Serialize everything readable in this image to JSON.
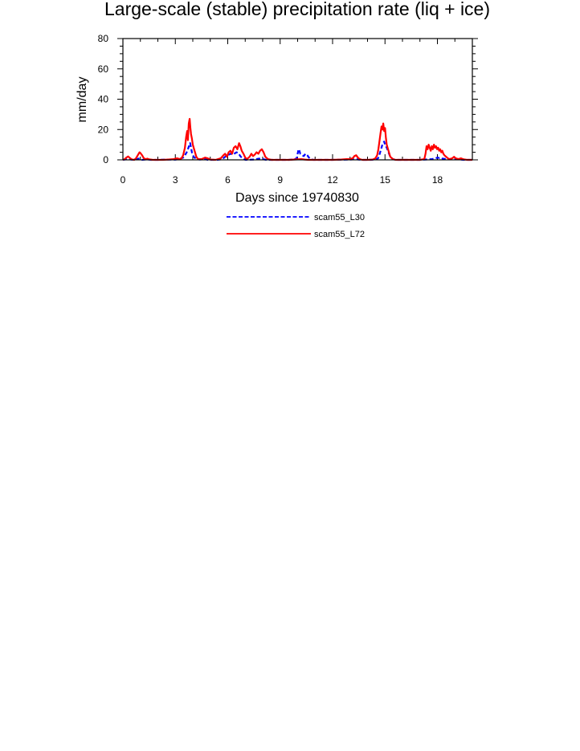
{
  "chart_data": {
    "type": "line",
    "title": "Large-scale (stable) precipitation rate (liq + ice)",
    "xlabel": "Days since 19740830",
    "ylabel": "mm/day",
    "xlim": [
      0,
      20
    ],
    "ylim": [
      0,
      80
    ],
    "xticks": [
      "0",
      "3",
      "6",
      "9",
      "12",
      "15",
      "18"
    ],
    "yticks": [
      "0",
      "20",
      "40",
      "60",
      "80"
    ],
    "grid": false,
    "legend_position": "below",
    "series": [
      {
        "name": "scam55_L30",
        "color": "#0000ff",
        "dash": "dashed",
        "points": [
          [
            0.0,
            0
          ],
          [
            0.15,
            0.3
          ],
          [
            0.3,
            0.6
          ],
          [
            0.45,
            0.2
          ],
          [
            0.6,
            0
          ],
          [
            0.9,
            0.8
          ],
          [
            1.1,
            0
          ],
          [
            1.4,
            0.3
          ],
          [
            1.6,
            0
          ],
          [
            2.0,
            0
          ],
          [
            2.5,
            0.2
          ],
          [
            3.0,
            0.1
          ],
          [
            3.3,
            0.8
          ],
          [
            3.45,
            1.5
          ],
          [
            3.55,
            3
          ],
          [
            3.65,
            5
          ],
          [
            3.72,
            7
          ],
          [
            3.78,
            9
          ],
          [
            3.85,
            11
          ],
          [
            3.9,
            8
          ],
          [
            3.95,
            5
          ],
          [
            4.05,
            2
          ],
          [
            4.2,
            0.5
          ],
          [
            4.4,
            0.2
          ],
          [
            4.7,
            0.5
          ],
          [
            4.85,
            0
          ],
          [
            5.4,
            0
          ],
          [
            5.7,
            0.5
          ],
          [
            5.85,
            2
          ],
          [
            6.0,
            3
          ],
          [
            6.15,
            4
          ],
          [
            6.3,
            3.5
          ],
          [
            6.5,
            5
          ],
          [
            6.6,
            4.5
          ],
          [
            6.75,
            2
          ],
          [
            6.9,
            0.8
          ],
          [
            7.0,
            0
          ],
          [
            7.5,
            0.2
          ],
          [
            7.8,
            0.8
          ],
          [
            8.0,
            0.5
          ],
          [
            8.2,
            0
          ],
          [
            9.0,
            0
          ],
          [
            9.5,
            0
          ],
          [
            9.8,
            0.3
          ],
          [
            9.95,
            1
          ],
          [
            10.0,
            4
          ],
          [
            10.05,
            7
          ],
          [
            10.1,
            6
          ],
          [
            10.15,
            4
          ],
          [
            10.25,
            3
          ],
          [
            10.35,
            2.5
          ],
          [
            10.45,
            4
          ],
          [
            10.55,
            3
          ],
          [
            10.65,
            1.5
          ],
          [
            10.75,
            0.3
          ],
          [
            10.9,
            0
          ],
          [
            11.5,
            0
          ],
          [
            12.0,
            0
          ],
          [
            12.5,
            0.1
          ],
          [
            13.0,
            0.2
          ],
          [
            13.3,
            0.5
          ],
          [
            13.5,
            0.2
          ],
          [
            13.7,
            0
          ],
          [
            14.2,
            0
          ],
          [
            14.5,
            0.3
          ],
          [
            14.6,
            1
          ],
          [
            14.7,
            4
          ],
          [
            14.8,
            8
          ],
          [
            14.85,
            10
          ],
          [
            14.95,
            12
          ],
          [
            15.0,
            10
          ],
          [
            15.1,
            8
          ],
          [
            15.2,
            5
          ],
          [
            15.3,
            2
          ],
          [
            15.45,
            0.5
          ],
          [
            15.6,
            0
          ],
          [
            16.0,
            0
          ],
          [
            16.5,
            0
          ],
          [
            17.0,
            0
          ],
          [
            17.3,
            0.2
          ],
          [
            17.5,
            0.3
          ],
          [
            17.7,
            0.5
          ],
          [
            17.9,
            1
          ],
          [
            18.0,
            1.5
          ],
          [
            18.1,
            1.2
          ],
          [
            18.2,
            1.5
          ],
          [
            18.3,
            0.8
          ],
          [
            18.5,
            0.5
          ],
          [
            18.7,
            0.3
          ],
          [
            18.9,
            0.5
          ],
          [
            19.0,
            0.8
          ],
          [
            19.2,
            0.3
          ],
          [
            19.5,
            0
          ],
          [
            20.0,
            0
          ]
        ]
      },
      {
        "name": "scam55_L72",
        "color": "#ff0000",
        "dash": "solid",
        "points": [
          [
            0.0,
            0
          ],
          [
            0.1,
            0.5
          ],
          [
            0.2,
            1.5
          ],
          [
            0.3,
            2.2
          ],
          [
            0.4,
            1.2
          ],
          [
            0.5,
            0.3
          ],
          [
            0.65,
            0
          ],
          [
            0.75,
            1
          ],
          [
            0.85,
            3
          ],
          [
            0.95,
            5
          ],
          [
            1.0,
            4.5
          ],
          [
            1.1,
            3
          ],
          [
            1.2,
            1
          ],
          [
            1.3,
            0.5
          ],
          [
            1.4,
            0.8
          ],
          [
            1.5,
            0.3
          ],
          [
            1.7,
            0
          ],
          [
            2.0,
            0
          ],
          [
            2.3,
            0
          ],
          [
            2.6,
            0.2
          ],
          [
            2.9,
            0.5
          ],
          [
            3.1,
            1
          ],
          [
            3.25,
            0.5
          ],
          [
            3.35,
            1
          ],
          [
            3.45,
            3
          ],
          [
            3.55,
            8
          ],
          [
            3.62,
            15
          ],
          [
            3.68,
            19
          ],
          [
            3.72,
            13
          ],
          [
            3.77,
            24
          ],
          [
            3.82,
            27
          ],
          [
            3.86,
            21
          ],
          [
            3.9,
            17
          ],
          [
            3.95,
            14
          ],
          [
            4.0,
            10
          ],
          [
            4.1,
            6
          ],
          [
            4.2,
            2
          ],
          [
            4.3,
            0.5
          ],
          [
            4.5,
            0.5
          ],
          [
            4.7,
            1.5
          ],
          [
            4.85,
            1
          ],
          [
            5.0,
            0.2
          ],
          [
            5.3,
            0
          ],
          [
            5.6,
            1
          ],
          [
            5.75,
            3
          ],
          [
            5.85,
            4
          ],
          [
            5.95,
            2
          ],
          [
            6.05,
            5
          ],
          [
            6.15,
            6
          ],
          [
            6.25,
            4
          ],
          [
            6.35,
            8
          ],
          [
            6.45,
            9
          ],
          [
            6.55,
            7
          ],
          [
            6.65,
            11
          ],
          [
            6.72,
            9
          ],
          [
            6.8,
            6
          ],
          [
            6.9,
            4
          ],
          [
            7.0,
            1.5
          ],
          [
            7.1,
            0.5
          ],
          [
            7.25,
            2
          ],
          [
            7.35,
            4
          ],
          [
            7.45,
            2.5
          ],
          [
            7.55,
            3.5
          ],
          [
            7.65,
            5
          ],
          [
            7.75,
            4
          ],
          [
            7.85,
            6
          ],
          [
            7.95,
            7
          ],
          [
            8.05,
            5
          ],
          [
            8.15,
            2
          ],
          [
            8.3,
            0.5
          ],
          [
            8.5,
            0
          ],
          [
            9.0,
            0
          ],
          [
            9.5,
            0
          ],
          [
            10.0,
            0.3
          ],
          [
            10.2,
            0.5
          ],
          [
            10.4,
            0.2
          ],
          [
            10.6,
            0
          ],
          [
            11.0,
            0
          ],
          [
            11.5,
            0
          ],
          [
            12.0,
            0
          ],
          [
            12.5,
            0.2
          ],
          [
            12.8,
            0.5
          ],
          [
            13.0,
            0.5
          ],
          [
            13.15,
            1
          ],
          [
            13.25,
            2.5
          ],
          [
            13.35,
            3
          ],
          [
            13.45,
            1.5
          ],
          [
            13.55,
            0.5
          ],
          [
            13.7,
            0
          ],
          [
            14.0,
            0
          ],
          [
            14.3,
            0.2
          ],
          [
            14.45,
            1
          ],
          [
            14.55,
            3
          ],
          [
            14.62,
            7
          ],
          [
            14.68,
            12
          ],
          [
            14.75,
            18
          ],
          [
            14.8,
            22
          ],
          [
            14.85,
            20
          ],
          [
            14.9,
            24
          ],
          [
            14.95,
            19
          ],
          [
            15.0,
            21
          ],
          [
            15.05,
            15
          ],
          [
            15.1,
            10
          ],
          [
            15.2,
            6
          ],
          [
            15.3,
            2
          ],
          [
            15.45,
            0.5
          ],
          [
            15.6,
            0
          ],
          [
            16.0,
            0
          ],
          [
            16.5,
            0
          ],
          [
            17.0,
            0
          ],
          [
            17.25,
            0.5
          ],
          [
            17.32,
            4
          ],
          [
            17.38,
            9
          ],
          [
            17.44,
            7
          ],
          [
            17.5,
            10
          ],
          [
            17.56,
            8
          ],
          [
            17.62,
            6
          ],
          [
            17.68,
            9
          ],
          [
            17.74,
            7
          ],
          [
            17.8,
            10
          ],
          [
            17.86,
            8
          ],
          [
            17.92,
            9
          ],
          [
            17.98,
            7
          ],
          [
            18.04,
            8
          ],
          [
            18.1,
            6
          ],
          [
            18.16,
            7
          ],
          [
            18.22,
            5
          ],
          [
            18.28,
            6
          ],
          [
            18.34,
            4
          ],
          [
            18.4,
            3
          ],
          [
            18.5,
            2
          ],
          [
            18.6,
            1
          ],
          [
            18.7,
            0.5
          ],
          [
            18.85,
            1
          ],
          [
            18.95,
            2
          ],
          [
            19.05,
            1
          ],
          [
            19.2,
            0.5
          ],
          [
            19.35,
            1
          ],
          [
            19.5,
            0.3
          ],
          [
            19.7,
            0
          ],
          [
            20.0,
            0
          ]
        ]
      }
    ]
  }
}
